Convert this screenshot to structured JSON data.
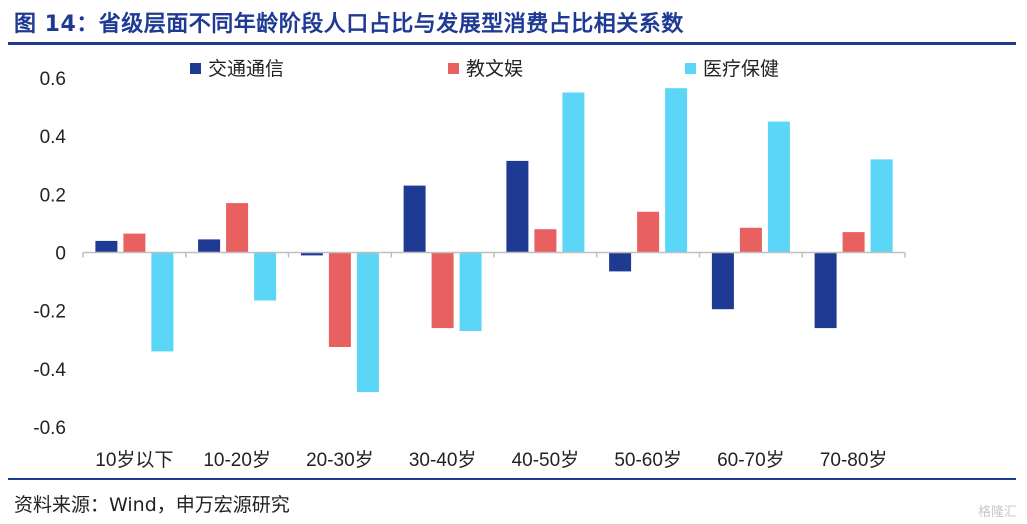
{
  "figure": {
    "title": "图 14：省级层面不同年龄阶段人口占比与发展型消费占比相关系数",
    "source": "资料来源：Wind，申万宏源研究",
    "watermark": "格隆汇"
  },
  "colors": {
    "accent": "#1f3a93",
    "series": [
      "#1f3a93",
      "#e8605f",
      "#5bd6f7"
    ]
  },
  "chart_data": {
    "type": "bar",
    "categories": [
      "10岁以下",
      "10-20岁",
      "20-30岁",
      "30-40岁",
      "40-50岁",
      "50-60岁",
      "60-70岁",
      "70-80岁"
    ],
    "series": [
      {
        "name": "交通通信",
        "values": [
          0.04,
          0.045,
          -0.01,
          0.23,
          0.315,
          -0.065,
          -0.195,
          -0.26
        ]
      },
      {
        "name": "教文娱",
        "values": [
          0.065,
          0.17,
          -0.325,
          -0.26,
          0.08,
          0.14,
          0.085,
          0.07
        ]
      },
      {
        "name": "医疗保健",
        "values": [
          -0.34,
          -0.165,
          -0.48,
          -0.27,
          0.55,
          0.565,
          0.45,
          0.32
        ]
      }
    ],
    "yticks": [
      "0.6",
      "0.4",
      "0.2",
      "0",
      "-0.2",
      "-0.4",
      "-0.6"
    ],
    "ylim": [
      -0.6,
      0.6
    ],
    "legend_position": "top",
    "grid": false
  }
}
